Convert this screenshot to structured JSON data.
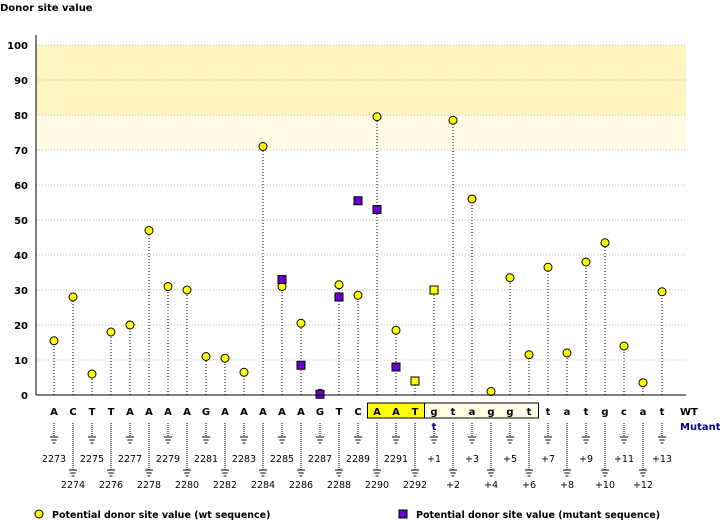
{
  "chart_data": {
    "type": "scatter",
    "ylabel": "Donor site value",
    "ylim": [
      0,
      100
    ],
    "yticks": [
      0,
      10,
      20,
      30,
      40,
      50,
      60,
      70,
      80,
      90,
      100
    ],
    "highlight_band": [
      80,
      100
    ],
    "grid": true,
    "bases": [
      "A",
      "C",
      "T",
      "T",
      "A",
      "A",
      "A",
      "A",
      "G",
      "A",
      "A",
      "A",
      "A",
      "A",
      "G",
      "T",
      "C",
      "A",
      "A",
      "T",
      "g",
      "t",
      "a",
      "g",
      "g",
      "t",
      "t",
      "a",
      "t",
      "g",
      "c",
      "a",
      "t"
    ],
    "positions": [
      "2273",
      "2274",
      "2275",
      "2276",
      "2277",
      "2278",
      "2279",
      "2280",
      "2281",
      "2282",
      "2283",
      "2284",
      "2285",
      "2286",
      "2287",
      "2288",
      "2289",
      "2290",
      "2291",
      "2292",
      "+1",
      "+2",
      "+3",
      "+4",
      "+5",
      "+6",
      "+7",
      "+8",
      "+9",
      "+10",
      "+11",
      "+12",
      "+13"
    ],
    "exon_box": [
      17,
      19
    ],
    "intron_box": [
      20,
      25
    ],
    "series": [
      {
        "name": "Potential donor site value (wt sequence)",
        "color": "#ffff00",
        "marker": "circle",
        "values": [
          15.5,
          28,
          6,
          18,
          20,
          47,
          31,
          30,
          11,
          10.5,
          6.5,
          71,
          31,
          20.5,
          0.5,
          31.5,
          28.5,
          79.5,
          18.5,
          4,
          30,
          78.5,
          56,
          1,
          33.5,
          11.5,
          36.5,
          12,
          38,
          43.5,
          14,
          3.5,
          29.5
        ]
      },
      {
        "name": "Potential donor site value (mutant sequence)",
        "color": "#6600cc",
        "marker": "square",
        "points": [
          [
            12,
            33
          ],
          [
            13,
            8.5
          ],
          [
            14,
            0.2
          ],
          [
            15,
            28
          ],
          [
            16,
            55.5
          ],
          [
            17,
            53
          ],
          [
            18,
            8
          ],
          [
            19,
            4
          ],
          [
            20,
            30
          ]
        ]
      }
    ],
    "mutation": {
      "index": 20,
      "wt_label": "WT",
      "mut_label": "Mutant",
      "mut_base": "t"
    }
  },
  "legend": {
    "wt": "Potential donor site value (wt sequence)",
    "mut": "Potential donor site value (mutant sequence)"
  }
}
